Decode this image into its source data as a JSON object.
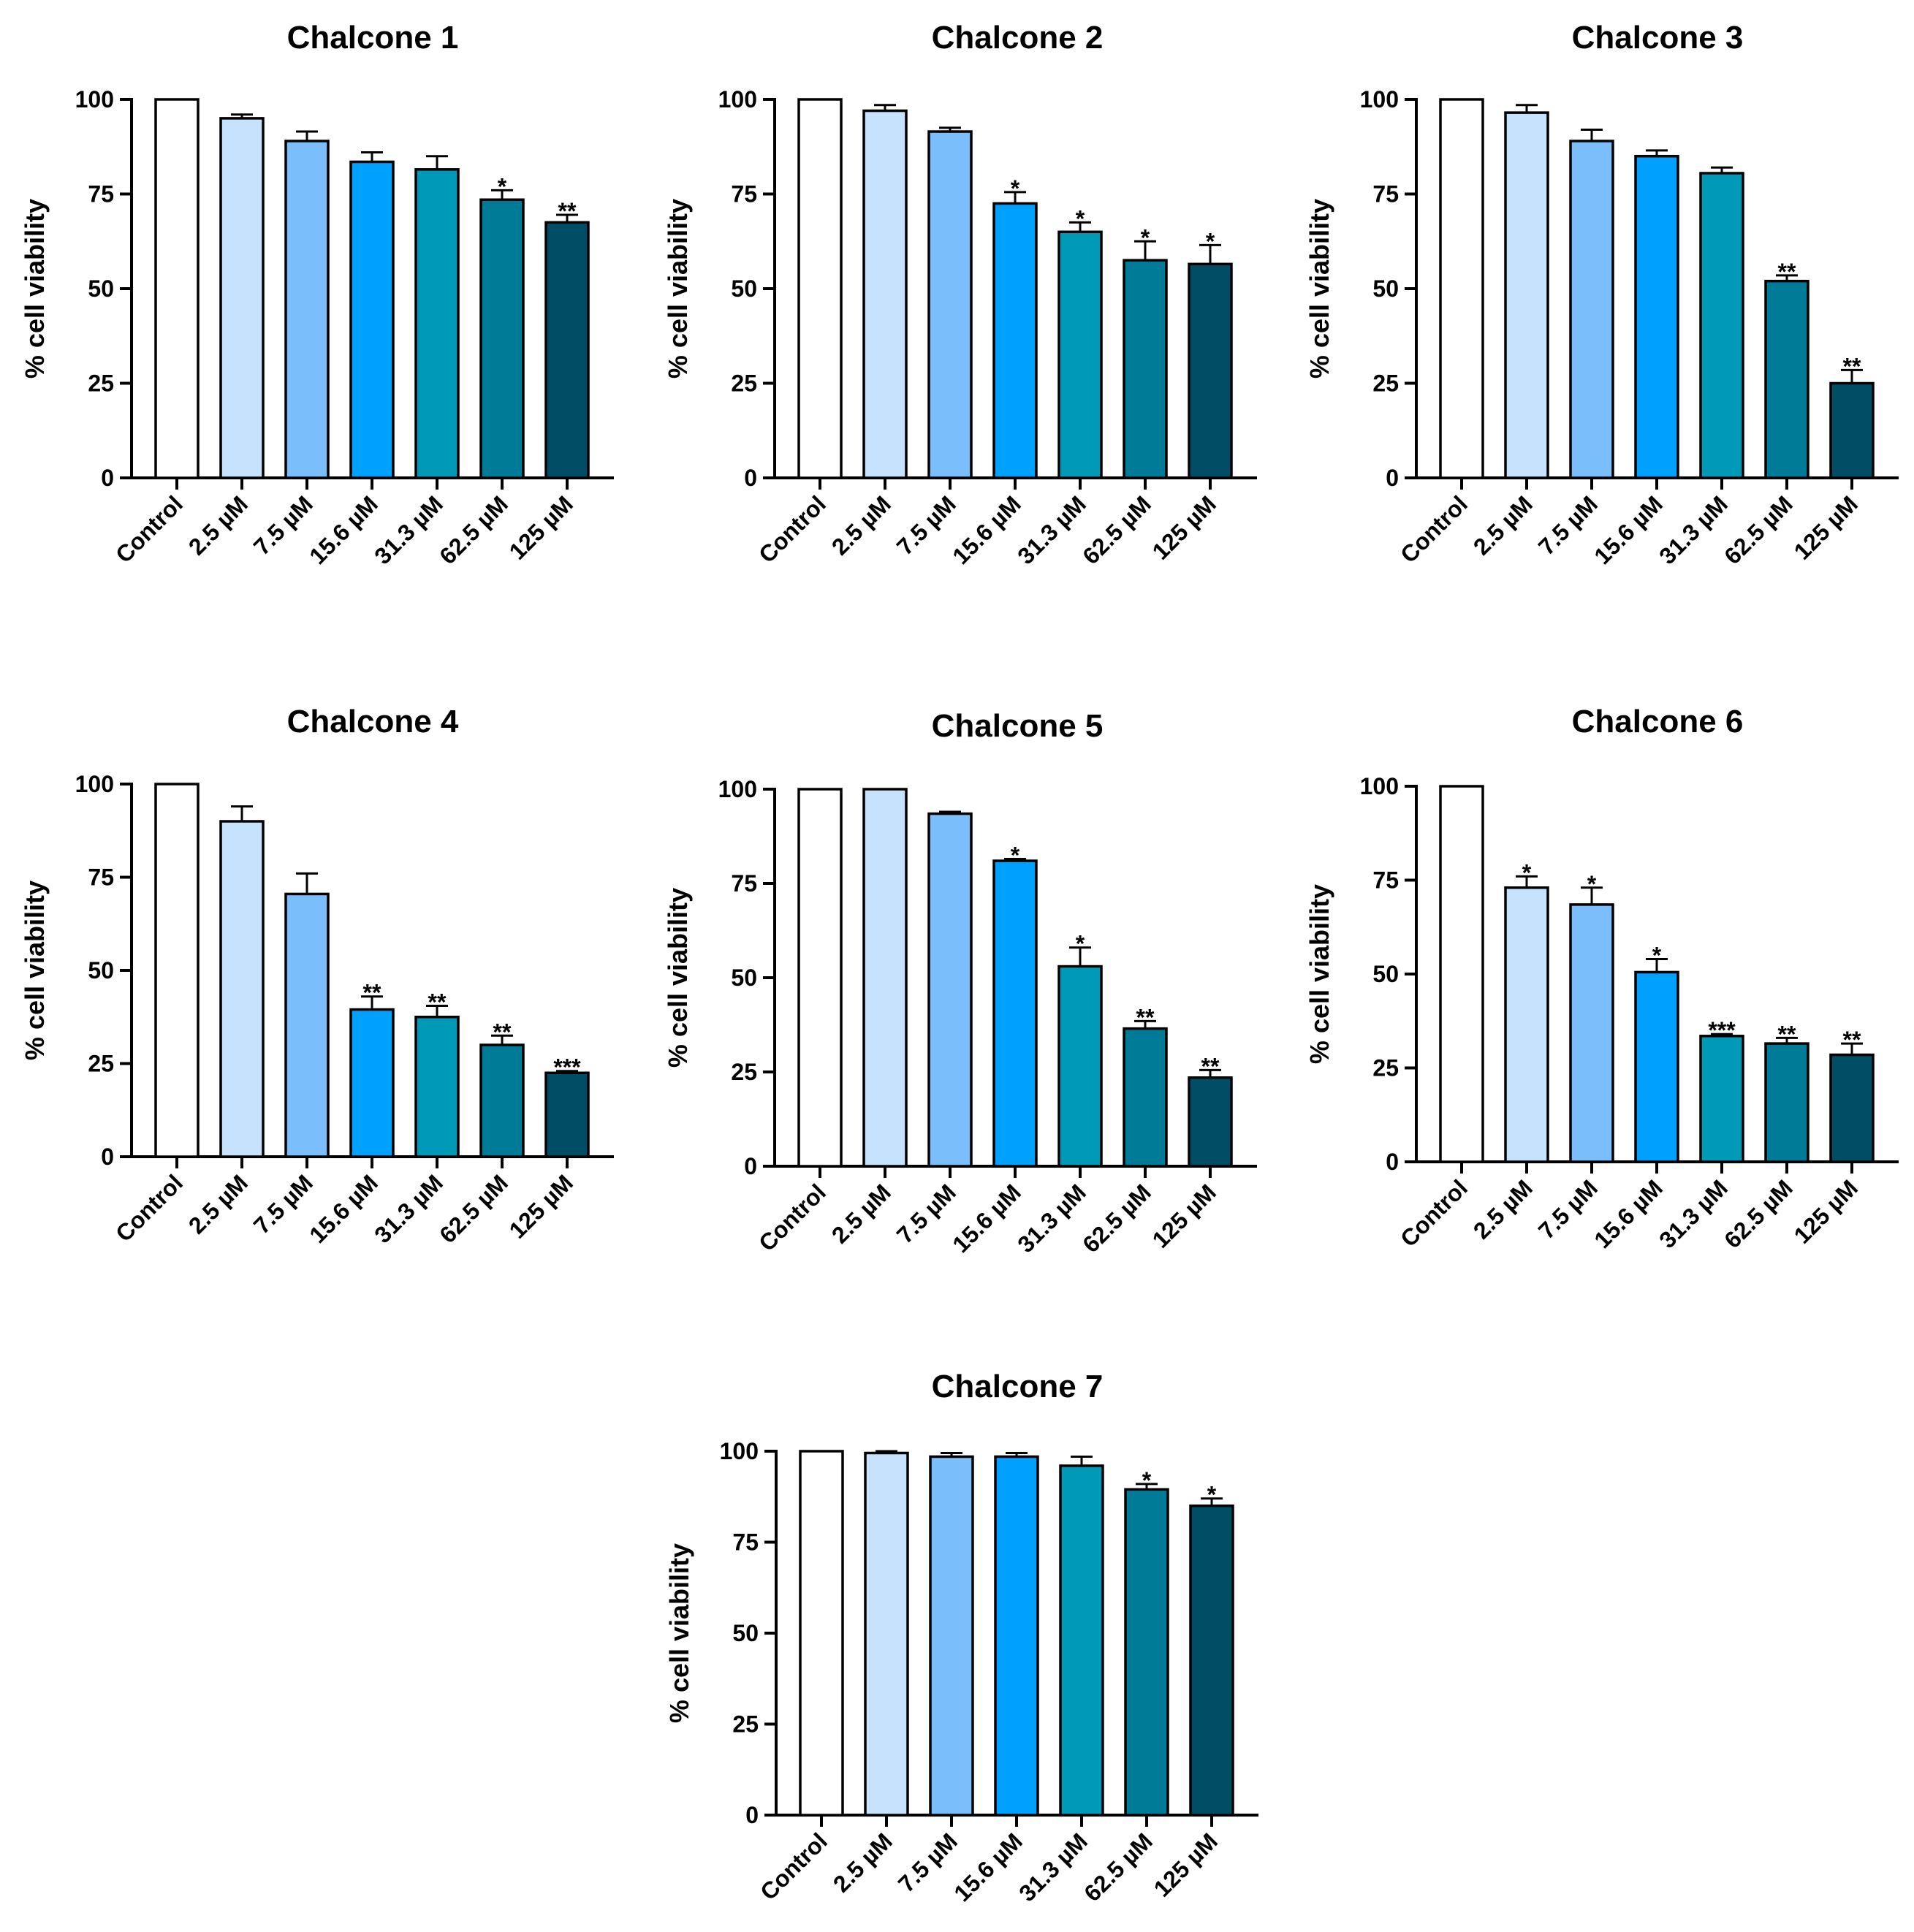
{
  "colors": [
    "#ffffff",
    "#c6e2fc",
    "#7abffc",
    "#00a0ff",
    "#0099b8",
    "#007b97",
    "#004d66"
  ],
  "chart_data": [
    {
      "type": "bar",
      "title": "Chalcone 1",
      "ylabel": "% cell viability",
      "xlabel": "",
      "ylim": [
        0,
        100
      ],
      "yticks": [
        "0",
        "25",
        "50",
        "75",
        "100"
      ],
      "categories": [
        "Control",
        "2.5 µM",
        "7.5 µM",
        "15.6 µM",
        "31.3 µM",
        "62.5 µM",
        "125 µM"
      ],
      "values": [
        100,
        95,
        89,
        83.5,
        81.5,
        73.5,
        67.5
      ],
      "errors": [
        0,
        1,
        2.5,
        2.5,
        3.5,
        2.5,
        2
      ],
      "significance": [
        "",
        "",
        "",
        "",
        "",
        "*",
        "**"
      ]
    },
    {
      "type": "bar",
      "title": "Chalcone 2",
      "ylabel": "% cell viability",
      "xlabel": "",
      "ylim": [
        0,
        100
      ],
      "yticks": [
        "0",
        "25",
        "50",
        "75",
        "100"
      ],
      "categories": [
        "Control",
        "2.5 µM",
        "7.5 µM",
        "15.6 µM",
        "31.3 µM",
        "62.5 µM",
        "125 µM"
      ],
      "values": [
        100,
        97,
        91.5,
        72.5,
        65,
        57.5,
        56.5
      ],
      "errors": [
        0,
        1.5,
        1,
        3,
        2.5,
        5,
        5
      ],
      "significance": [
        "",
        "",
        "",
        "*",
        "*",
        "*",
        "*"
      ]
    },
    {
      "type": "bar",
      "title": "Chalcone 3",
      "ylabel": "% cell viability",
      "xlabel": "",
      "ylim": [
        0,
        100
      ],
      "yticks": [
        "0",
        "25",
        "50",
        "75",
        "100"
      ],
      "categories": [
        "Control",
        "2.5 µM",
        "7.5 µM",
        "15.6 µM",
        "31.3 µM",
        "62.5 µM",
        "125 µM"
      ],
      "values": [
        100,
        96.5,
        89,
        85,
        80.5,
        52,
        25
      ],
      "errors": [
        0,
        2,
        3,
        1.5,
        1.5,
        1.5,
        3.5
      ],
      "significance": [
        "",
        "",
        "",
        "",
        "",
        "**",
        "**"
      ]
    },
    {
      "type": "bar",
      "title": "Chalcone 4",
      "ylabel": "% cell viability",
      "xlabel": "",
      "ylim": [
        0,
        100
      ],
      "yticks": [
        "0",
        "25",
        "50",
        "75",
        "100"
      ],
      "categories": [
        "Control",
        "2.5 µM",
        "7.5 µM",
        "15.6 µM",
        "31.3 µM",
        "62.5 µM",
        "125 µM"
      ],
      "values": [
        100,
        90,
        70.5,
        39.5,
        37.5,
        30,
        22.5
      ],
      "errors": [
        0,
        4,
        5.5,
        3.5,
        3,
        2.5,
        0.5
      ],
      "significance": [
        "",
        "",
        "",
        "**",
        "**",
        "**",
        "***"
      ]
    },
    {
      "type": "bar",
      "title": "Chalcone 5",
      "ylabel": "% cell viability",
      "xlabel": "",
      "ylim": [
        0,
        100
      ],
      "yticks": [
        "0",
        "25",
        "50",
        "75",
        "100"
      ],
      "categories": [
        "Control",
        "2.5 µM",
        "7.5 µM",
        "15.6 µM",
        "31.3 µM",
        "62.5 µM",
        "125 µM"
      ],
      "values": [
        100,
        100,
        93.5,
        81,
        53,
        36.5,
        23.5
      ],
      "errors": [
        0,
        0,
        0.5,
        0.5,
        5,
        2,
        2
      ],
      "significance": [
        "",
        "",
        "",
        "*",
        "*",
        "**",
        "**"
      ]
    },
    {
      "type": "bar",
      "title": "Chalcone 6",
      "ylabel": "% cell viability",
      "xlabel": "",
      "ylim": [
        0,
        100
      ],
      "yticks": [
        "0",
        "25",
        "50",
        "75",
        "100"
      ],
      "categories": [
        "Control",
        "2.5 µM",
        "7.5 µM",
        "15.6 µM",
        "31.3 µM",
        "62.5 µM",
        "125 µM"
      ],
      "values": [
        100,
        73,
        68.5,
        50.5,
        33.5,
        31.5,
        28.5
      ],
      "errors": [
        0,
        3,
        4.5,
        3.5,
        0.5,
        1.5,
        3
      ],
      "significance": [
        "",
        "*",
        "*",
        "*",
        "***",
        "**",
        "**"
      ]
    },
    {
      "type": "bar",
      "title": "Chalcone 7",
      "ylabel": "% cell viability",
      "xlabel": "",
      "ylim": [
        0,
        100
      ],
      "yticks": [
        "0",
        "25",
        "50",
        "75",
        "100"
      ],
      "categories": [
        "Control",
        "2.5 µM",
        "7.5 µM",
        "15.6 µM",
        "31.3 µM",
        "62.5 µM",
        "125 µM"
      ],
      "values": [
        100,
        99.5,
        98.5,
        98.5,
        96,
        89.5,
        85
      ],
      "errors": [
        0,
        0.5,
        1,
        1,
        2.5,
        1.5,
        2
      ],
      "significance": [
        "",
        "",
        "",
        "",
        "",
        "*",
        "*"
      ]
    }
  ]
}
